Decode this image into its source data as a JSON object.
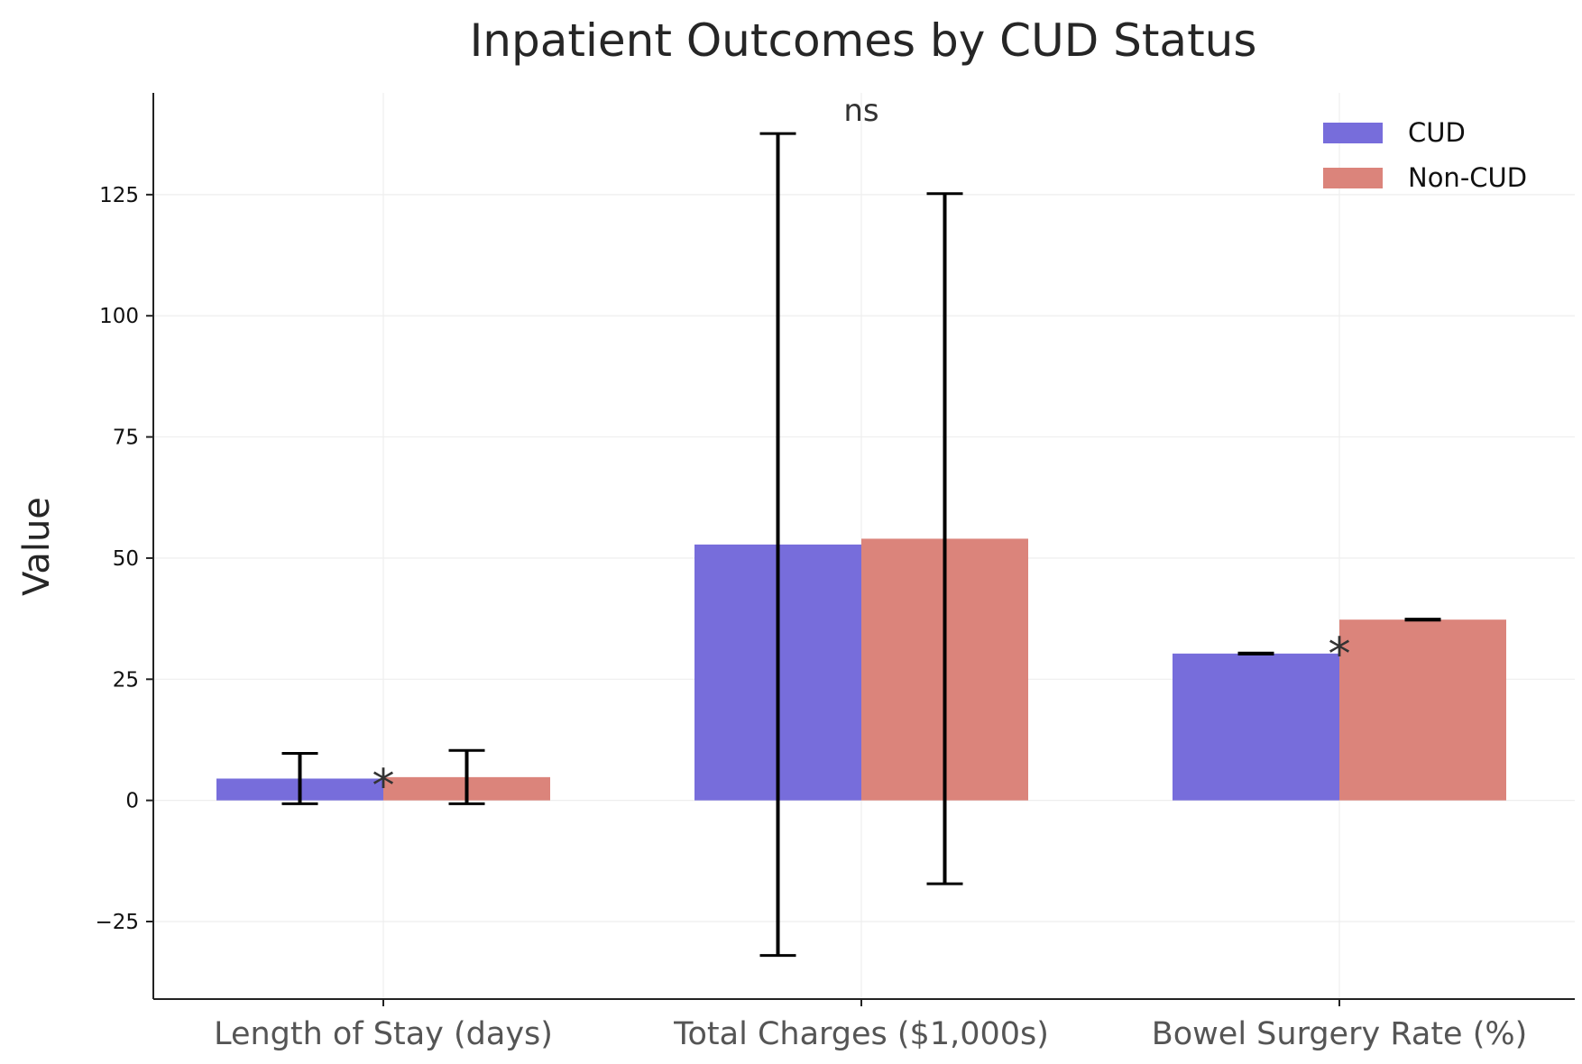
{
  "chart_data": {
    "type": "bar",
    "title": "Inpatient Outcomes by CUD Status",
    "xlabel": "",
    "ylabel": "Value",
    "categories": [
      "Length of Stay (days)",
      "Total Charges ($1,000s)",
      "Bowel Surgery Rate (%)"
    ],
    "series": [
      {
        "name": "CUD",
        "color": "#776ddb",
        "values": [
          4.5,
          52.8,
          30.3
        ],
        "error": [
          5.2,
          84.8,
          0.1
        ]
      },
      {
        "name": "Non-CUD",
        "color": "#db847b",
        "values": [
          4.8,
          54.0,
          37.3
        ],
        "error": [
          5.5,
          71.2,
          0.1
        ]
      }
    ],
    "annotations": [
      "*",
      "ns",
      "*"
    ],
    "ylim": [
      -41,
      146
    ],
    "yticks": [
      -25,
      0,
      25,
      50,
      75,
      100,
      125
    ],
    "grid": true,
    "legend_position": "top-right"
  }
}
